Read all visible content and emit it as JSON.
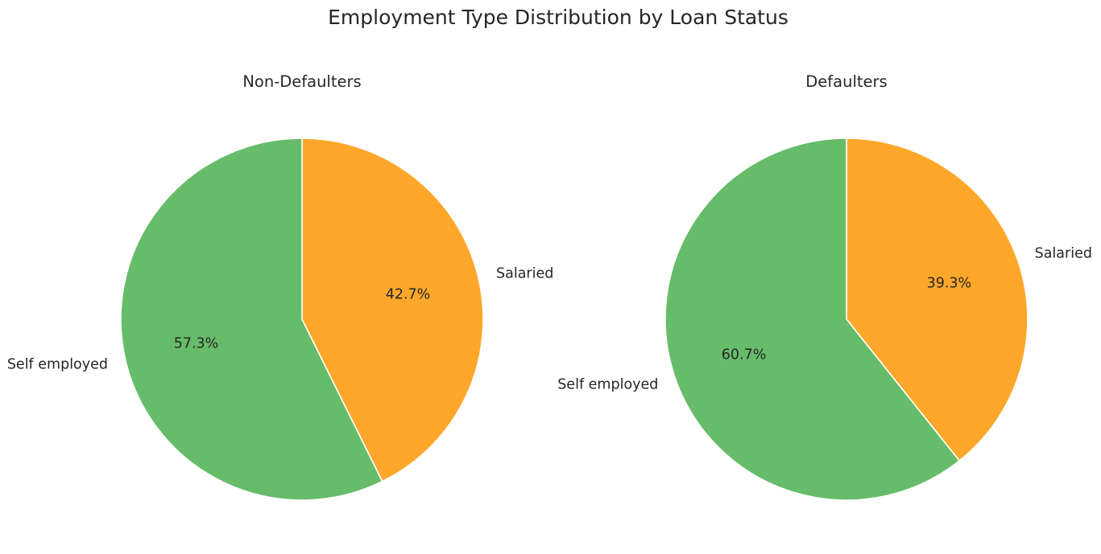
{
  "chart_title": "Employment Type Distribution by Loan Status",
  "chart_data": [
    {
      "type": "pie",
      "title": "Non-Defaulters",
      "labels": [
        "Salaried",
        "Self employed"
      ],
      "values": [
        42.7,
        57.3
      ],
      "autopct_labels": [
        "42.7%",
        "57.3%"
      ],
      "colors": [
        "#ffa72a",
        "#67bc6a"
      ],
      "start_angle": 90,
      "direction": "clockwise",
      "legend": "none"
    },
    {
      "type": "pie",
      "title": "Defaulters",
      "labels": [
        "Salaried",
        "Self employed"
      ],
      "values": [
        39.3,
        60.7
      ],
      "autopct_labels": [
        "39.3%",
        "60.7%"
      ],
      "colors": [
        "#ffa72a",
        "#67bc6a"
      ],
      "start_angle": 90,
      "direction": "clockwise",
      "legend": "none"
    }
  ]
}
